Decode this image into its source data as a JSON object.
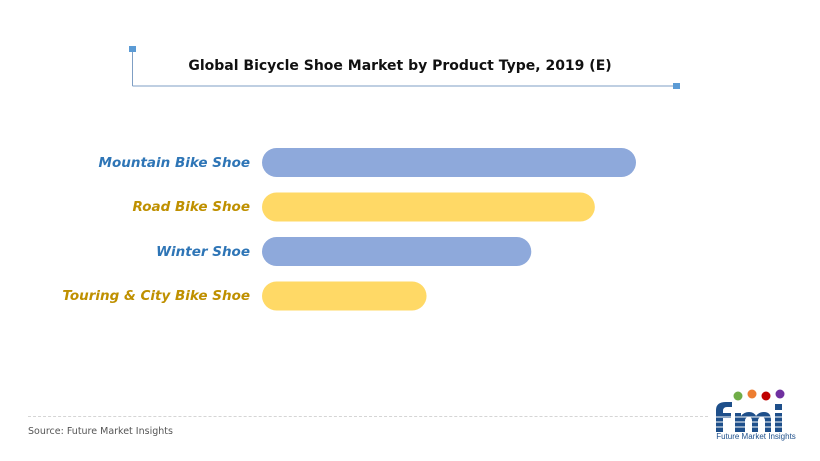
{
  "chart_data": {
    "type": "bar",
    "orientation": "horizontal",
    "title": "Global Bicycle Shoe Market by Product Type, 2019 (E)",
    "categories": [
      "Mountain Bike Shoe",
      "Road Bike Shoe",
      "Winter Shoe",
      "Touring & City Bike Shoe"
    ],
    "values": [
      100,
      89,
      72,
      44
    ],
    "colors": [
      "#8ea9db",
      "#ffd966",
      "#8ea9db",
      "#ffd966"
    ],
    "label_colors": [
      "#2e75b6",
      "#bf9000",
      "#2e75b6",
      "#bf9000"
    ],
    "xlim": [
      0,
      100
    ],
    "grid": false,
    "legend": "none"
  },
  "source": "Source: Future Market Insights",
  "logo": {
    "icon": "fmi-logo-icon",
    "caption": "Future Market Insights",
    "primary_color": "#1e4f8a"
  }
}
